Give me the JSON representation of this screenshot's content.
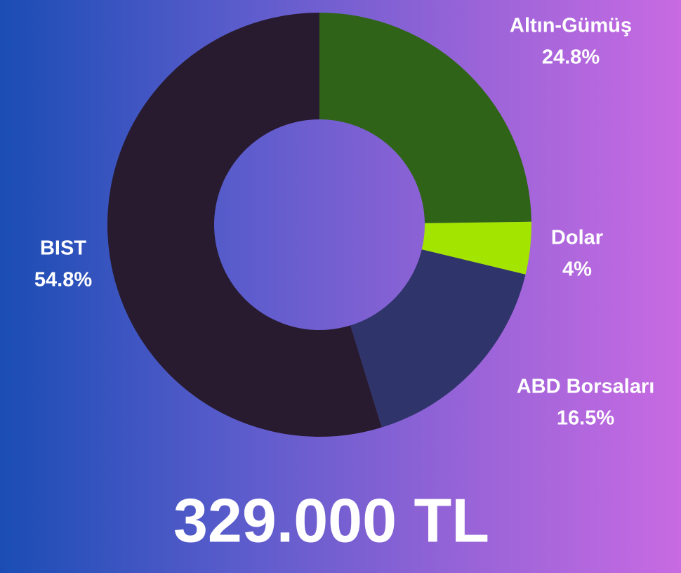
{
  "chart_data": {
    "type": "pie",
    "donut": true,
    "categories": [
      "Altın-Gümüş",
      "Dolar",
      "ABD Borsaları",
      "BIST"
    ],
    "values": [
      24.8,
      4,
      16.5,
      54.8
    ],
    "value_labels": [
      "24.8%",
      "4%",
      "16.5%",
      "54.8%"
    ],
    "colors": [
      "#2f6418",
      "#a3e400",
      "#2f346a",
      "#281b2f"
    ],
    "annotation": "329.000 TL"
  }
}
